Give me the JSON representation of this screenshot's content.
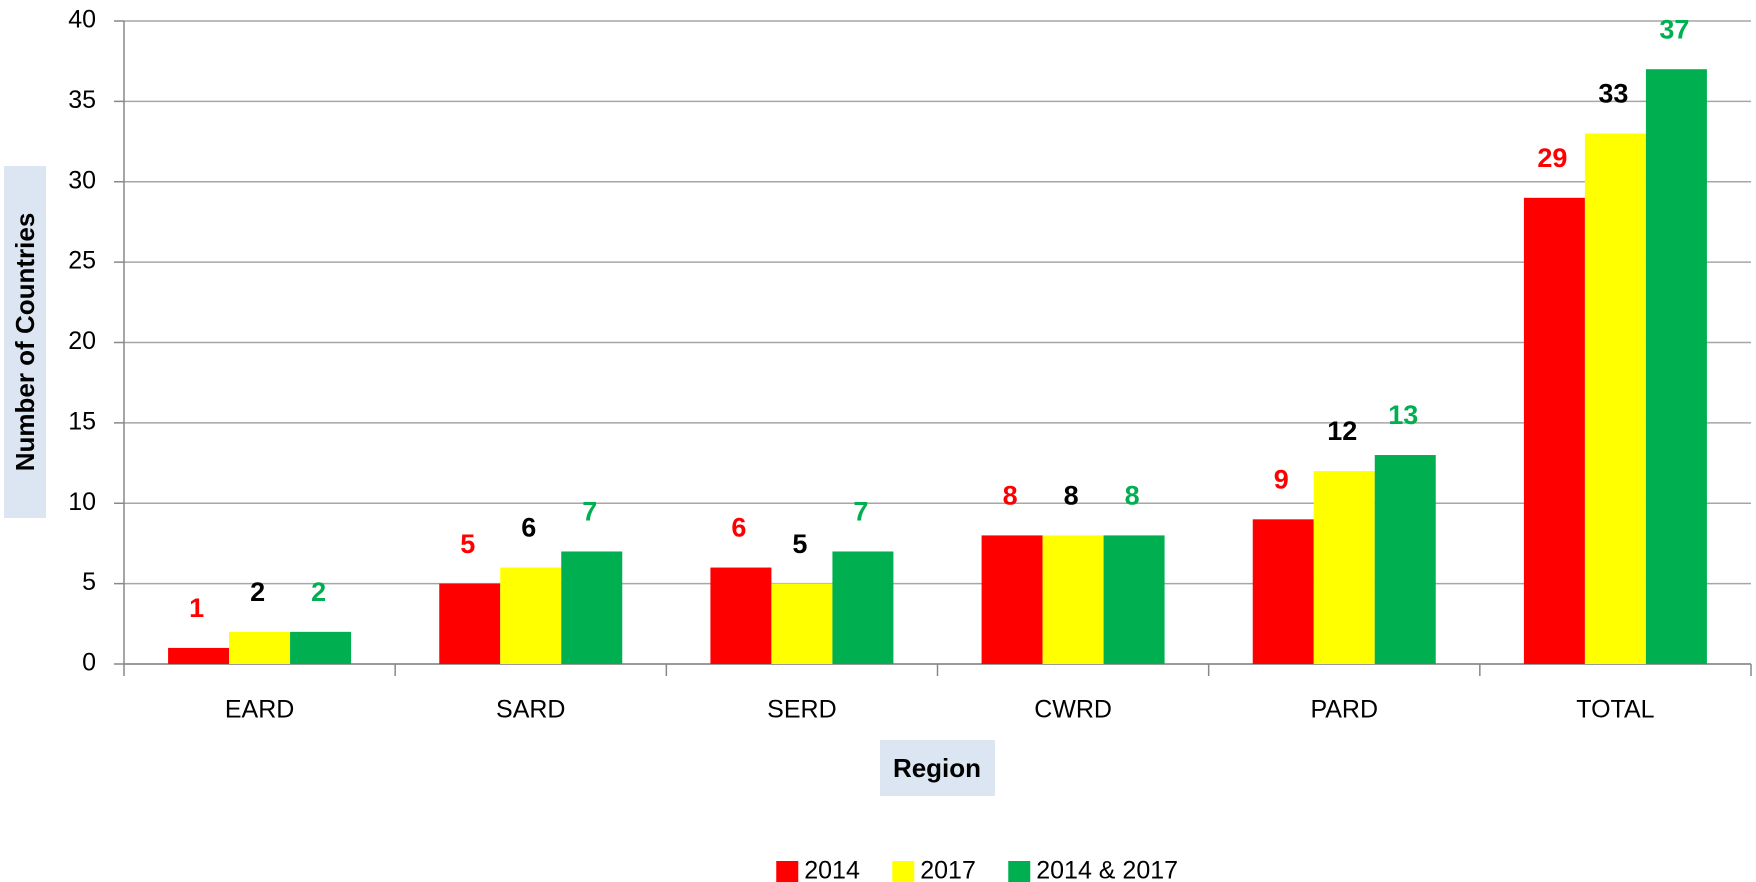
{
  "chart_data": {
    "type": "bar",
    "x_label": "Region",
    "y_label": "Number of Countries",
    "categories": [
      "EARD",
      "SARD",
      "SERD",
      "CWRD",
      "PARD",
      "TOTAL"
    ],
    "series": [
      {
        "name": "2014",
        "color": "#ff0000",
        "label_color": "#ff0000",
        "values": [
          1,
          5,
          6,
          8,
          9,
          29
        ]
      },
      {
        "name": "2017",
        "color": "#ffff00",
        "label_color": "#000000",
        "values": [
          2,
          6,
          5,
          8,
          12,
          33
        ]
      },
      {
        "name": "2014 & 2017",
        "color": "#00b050",
        "label_color": "#00b050",
        "values": [
          2,
          7,
          7,
          8,
          13,
          37
        ]
      }
    ],
    "ylim": [
      0,
      40
    ],
    "yticks": [
      0,
      5,
      10,
      15,
      20,
      25,
      30,
      35,
      40
    ],
    "grid": true,
    "legend": "bottom"
  }
}
